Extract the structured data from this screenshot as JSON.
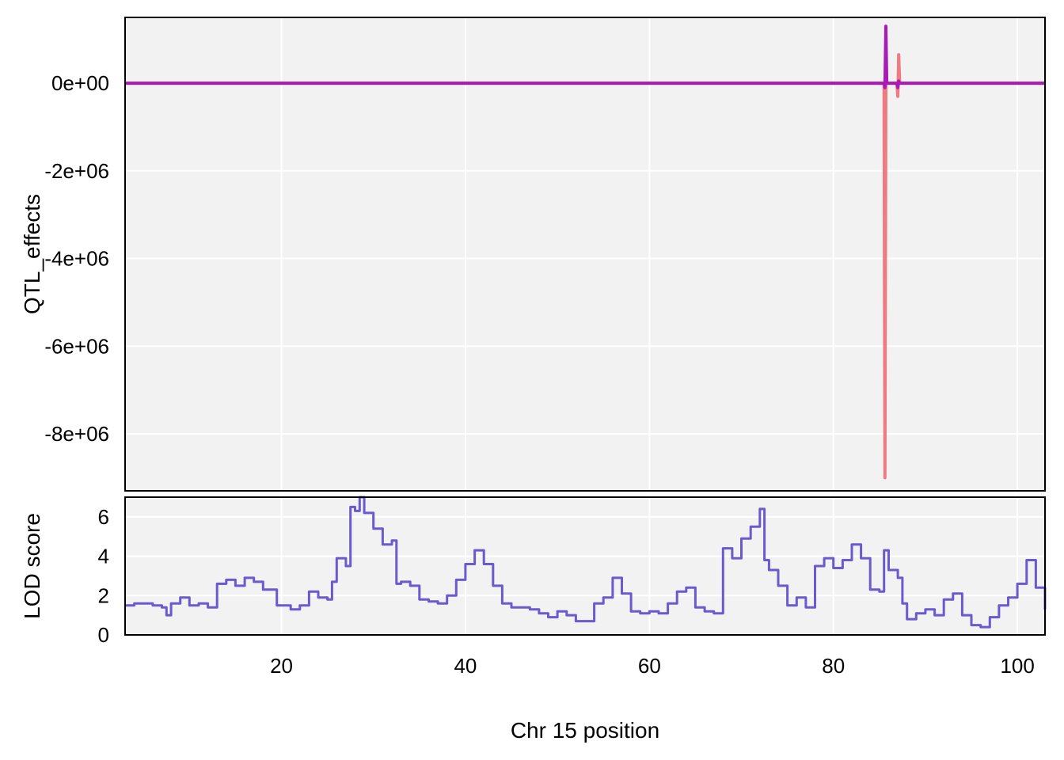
{
  "chart_data": [
    {
      "type": "line",
      "panel": "effects",
      "ylabel": "QTL_effects",
      "xlim": [
        3,
        103
      ],
      "ylim": [
        -9300000,
        1500000
      ],
      "yticks": [
        0,
        -2000000,
        -4000000,
        -6000000,
        -8000000
      ],
      "ytick_labels": [
        "0e+00",
        "-2e+06",
        "-4e+06",
        "-6e+06",
        "-8e+06"
      ],
      "grid": true,
      "series": [
        {
          "color": "#EE7A82",
          "points": [
            [
              3,
              0
            ],
            [
              85.5,
              0
            ],
            [
              85.6,
              -9000000
            ],
            [
              85.7,
              0
            ],
            [
              86.9,
              0
            ],
            [
              87.0,
              -300000
            ],
            [
              87.1,
              650000
            ],
            [
              87.2,
              0
            ],
            [
              103,
              0
            ]
          ]
        },
        {
          "color": "#A81BB5",
          "points": [
            [
              3,
              0
            ],
            [
              85.5,
              0
            ],
            [
              85.6,
              -100000
            ],
            [
              85.7,
              1300000
            ],
            [
              85.8,
              0
            ],
            [
              86.9,
              0
            ],
            [
              87.0,
              -100000
            ],
            [
              87.1,
              50000
            ],
            [
              87.2,
              0
            ],
            [
              103,
              0
            ]
          ]
        }
      ]
    },
    {
      "type": "line",
      "panel": "lod",
      "ylabel": "LOD score",
      "xlabel": "Chr 15 position",
      "xlim": [
        3,
        103
      ],
      "ylim": [
        0,
        7
      ],
      "yticks": [
        0,
        2,
        4,
        6
      ],
      "xticks": [
        20,
        40,
        60,
        80,
        100
      ],
      "grid": true,
      "series": [
        {
          "color": "#6A5ACD",
          "points": [
            [
              3,
              1.5
            ],
            [
              4,
              1.6
            ],
            [
              5,
              1.6
            ],
            [
              6,
              1.5
            ],
            [
              7,
              1.4
            ],
            [
              7.5,
              1.0
            ],
            [
              8,
              1.6
            ],
            [
              9,
              1.9
            ],
            [
              10,
              1.5
            ],
            [
              11,
              1.6
            ],
            [
              12,
              1.4
            ],
            [
              13,
              2.6
            ],
            [
              14,
              2.8
            ],
            [
              15,
              2.5
            ],
            [
              16,
              2.9
            ],
            [
              17,
              2.7
            ],
            [
              18,
              2.3
            ],
            [
              19,
              2.3
            ],
            [
              19.5,
              1.5
            ],
            [
              20,
              1.5
            ],
            [
              21,
              1.3
            ],
            [
              22,
              1.5
            ],
            [
              23,
              2.2
            ],
            [
              24,
              1.9
            ],
            [
              25,
              1.8
            ],
            [
              25.5,
              2.7
            ],
            [
              26,
              3.9
            ],
            [
              27,
              3.5
            ],
            [
              27.5,
              6.5
            ],
            [
              28,
              6.3
            ],
            [
              28.5,
              7.0
            ],
            [
              29,
              6.2
            ],
            [
              30,
              5.4
            ],
            [
              31,
              4.6
            ],
            [
              32,
              4.8
            ],
            [
              32.5,
              2.6
            ],
            [
              33,
              2.7
            ],
            [
              34,
              2.5
            ],
            [
              35,
              1.8
            ],
            [
              36,
              1.7
            ],
            [
              37,
              1.6
            ],
            [
              38,
              2.0
            ],
            [
              39,
              2.8
            ],
            [
              40,
              3.6
            ],
            [
              41,
              4.3
            ],
            [
              42,
              3.6
            ],
            [
              43,
              2.5
            ],
            [
              44,
              1.6
            ],
            [
              45,
              1.4
            ],
            [
              46,
              1.4
            ],
            [
              47,
              1.3
            ],
            [
              48,
              1.1
            ],
            [
              49,
              0.9
            ],
            [
              50,
              1.2
            ],
            [
              51,
              1.0
            ],
            [
              52,
              0.7
            ],
            [
              53,
              0.7
            ],
            [
              54,
              1.6
            ],
            [
              55,
              1.9
            ],
            [
              56,
              2.9
            ],
            [
              57,
              2.1
            ],
            [
              58,
              1.2
            ],
            [
              59,
              1.1
            ],
            [
              60,
              1.2
            ],
            [
              61,
              1.1
            ],
            [
              62,
              1.6
            ],
            [
              63,
              2.2
            ],
            [
              64,
              2.4
            ],
            [
              65,
              1.4
            ],
            [
              66,
              1.2
            ],
            [
              67,
              1.1
            ],
            [
              68,
              4.4
            ],
            [
              69,
              3.9
            ],
            [
              70,
              4.9
            ],
            [
              71,
              5.5
            ],
            [
              72,
              6.4
            ],
            [
              72.5,
              3.8
            ],
            [
              73,
              3.3
            ],
            [
              74,
              2.5
            ],
            [
              75,
              1.5
            ],
            [
              76,
              1.9
            ],
            [
              77,
              1.4
            ],
            [
              78,
              3.5
            ],
            [
              79,
              3.9
            ],
            [
              80,
              3.4
            ],
            [
              81,
              3.8
            ],
            [
              82,
              4.6
            ],
            [
              83,
              3.9
            ],
            [
              84,
              2.3
            ],
            [
              85,
              2.2
            ],
            [
              85.5,
              4.3
            ],
            [
              86,
              3.3
            ],
            [
              87,
              2.9
            ],
            [
              87.5,
              1.6
            ],
            [
              88,
              0.8
            ],
            [
              89,
              1.1
            ],
            [
              90,
              1.3
            ],
            [
              91,
              1.0
            ],
            [
              92,
              1.8
            ],
            [
              93,
              2.1
            ],
            [
              94,
              1.0
            ],
            [
              95,
              0.5
            ],
            [
              96,
              0.4
            ],
            [
              97,
              0.9
            ],
            [
              98,
              1.5
            ],
            [
              99,
              1.9
            ],
            [
              100,
              2.6
            ],
            [
              101,
              3.8
            ],
            [
              102,
              2.4
            ],
            [
              103,
              1.3
            ]
          ]
        }
      ]
    }
  ]
}
